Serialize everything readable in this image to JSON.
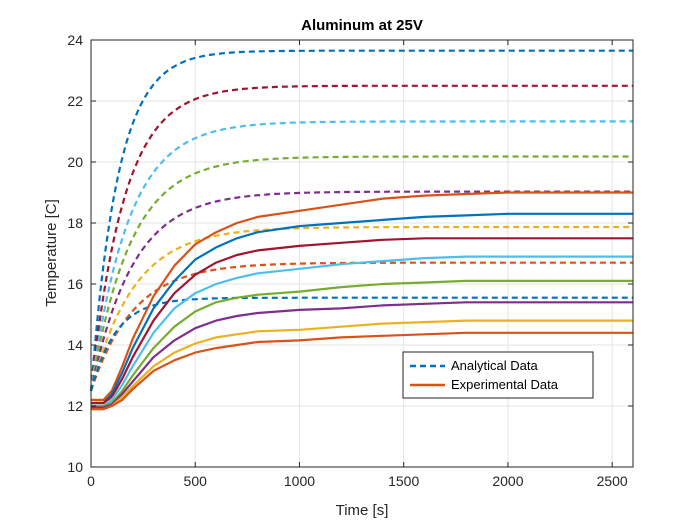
{
  "chart_data": {
    "type": "line",
    "title": "Aluminum at 25V",
    "xlabel": "Time [s]",
    "ylabel": "Temperature [C]",
    "xlim": [
      0,
      2600
    ],
    "ylim": [
      10,
      24
    ],
    "xticks": [
      0,
      500,
      1000,
      1500,
      2000,
      2500
    ],
    "yticks": [
      10,
      12,
      14,
      16,
      18,
      20,
      22,
      24
    ],
    "grid": true,
    "legend": {
      "position": "lower-right",
      "entries": [
        {
          "label": "Analytical Data",
          "style": "dashed",
          "color": "#0072BD"
        },
        {
          "label": "Experimental Data",
          "style": "solid",
          "color": "#D95319"
        }
      ]
    },
    "colors": [
      "#0072BD",
      "#A2142F",
      "#4DBEEE",
      "#77AC30",
      "#7E2F8E",
      "#D95319",
      "#EDB120"
    ],
    "analytical_series": [
      {
        "color": "#0072BD",
        "start": 12.5,
        "final": 23.65,
        "tau": 130
      },
      {
        "color": "#A2142F",
        "start": 12.5,
        "final": 22.5,
        "tau": 160
      },
      {
        "color": "#4DBEEE",
        "start": 12.5,
        "final": 21.33,
        "tau": 180
      },
      {
        "color": "#77AC30",
        "start": 12.5,
        "final": 20.18,
        "tau": 190
      },
      {
        "color": "#7E2F8E",
        "start": 12.5,
        "final": 19.03,
        "tau": 200
      },
      {
        "color": "#EDB120",
        "start": 12.5,
        "final": 17.87,
        "tau": 205
      },
      {
        "color": "#D95319",
        "start": 12.5,
        "final": 16.7,
        "tau": 205
      },
      {
        "color": "#0072BD",
        "start": 12.5,
        "final": 15.55,
        "tau": 120
      }
    ],
    "experimental_series": [
      {
        "color": "#D95319",
        "x": [
          0,
          60,
          100,
          150,
          200,
          300,
          400,
          500,
          600,
          700,
          800,
          1000,
          1200,
          1400,
          1600,
          1800,
          2000,
          2600
        ],
        "y": [
          12.2,
          12.2,
          12.5,
          13.3,
          14.2,
          15.6,
          16.6,
          17.3,
          17.7,
          18.0,
          18.2,
          18.4,
          18.6,
          18.8,
          18.9,
          18.95,
          19.0,
          19.0
        ]
      },
      {
        "color": "#0072BD",
        "x": [
          0,
          60,
          100,
          150,
          200,
          300,
          400,
          500,
          600,
          700,
          800,
          1000,
          1200,
          1400,
          1600,
          1800,
          2000,
          2600
        ],
        "y": [
          12.1,
          12.1,
          12.4,
          13.1,
          13.9,
          15.2,
          16.1,
          16.8,
          17.2,
          17.5,
          17.7,
          17.9,
          18.0,
          18.1,
          18.2,
          18.25,
          18.3,
          18.3
        ]
      },
      {
        "color": "#A2142F",
        "x": [
          0,
          60,
          100,
          150,
          200,
          300,
          400,
          500,
          600,
          700,
          800,
          1000,
          1200,
          1400,
          1600,
          1800,
          2000,
          2600
        ],
        "y": [
          12.1,
          12.1,
          12.3,
          12.9,
          13.6,
          14.8,
          15.7,
          16.3,
          16.7,
          16.95,
          17.1,
          17.25,
          17.35,
          17.45,
          17.5,
          17.5,
          17.5,
          17.5
        ]
      },
      {
        "color": "#4DBEEE",
        "x": [
          0,
          60,
          100,
          150,
          200,
          300,
          400,
          500,
          600,
          700,
          800,
          1000,
          1200,
          1400,
          1600,
          1800,
          2000,
          2600
        ],
        "y": [
          12.0,
          12.0,
          12.2,
          12.7,
          13.3,
          14.4,
          15.2,
          15.7,
          16.0,
          16.2,
          16.35,
          16.5,
          16.65,
          16.75,
          16.85,
          16.9,
          16.9,
          16.9
        ]
      },
      {
        "color": "#77AC30",
        "x": [
          0,
          60,
          100,
          150,
          200,
          300,
          400,
          500,
          600,
          700,
          800,
          1000,
          1200,
          1400,
          1600,
          1800,
          2000,
          2600
        ],
        "y": [
          12.0,
          12.0,
          12.1,
          12.5,
          13.0,
          13.9,
          14.6,
          15.1,
          15.4,
          15.55,
          15.65,
          15.75,
          15.9,
          16.0,
          16.05,
          16.1,
          16.1,
          16.1
        ]
      },
      {
        "color": "#7E2F8E",
        "x": [
          0,
          60,
          100,
          150,
          200,
          300,
          400,
          500,
          600,
          700,
          800,
          1000,
          1200,
          1400,
          1600,
          1800,
          2000,
          2600
        ],
        "y": [
          11.95,
          11.95,
          12.05,
          12.4,
          12.8,
          13.6,
          14.15,
          14.55,
          14.8,
          14.95,
          15.05,
          15.15,
          15.2,
          15.3,
          15.35,
          15.4,
          15.4,
          15.4
        ]
      },
      {
        "color": "#EDB120",
        "x": [
          0,
          60,
          100,
          150,
          200,
          300,
          400,
          500,
          600,
          700,
          800,
          1000,
          1200,
          1400,
          1600,
          1800,
          2000,
          2600
        ],
        "y": [
          11.9,
          11.9,
          12.0,
          12.3,
          12.65,
          13.3,
          13.75,
          14.05,
          14.25,
          14.35,
          14.45,
          14.5,
          14.6,
          14.7,
          14.75,
          14.8,
          14.8,
          14.8
        ]
      },
      {
        "color": "#D95319",
        "x": [
          0,
          60,
          100,
          150,
          200,
          300,
          400,
          500,
          600,
          700,
          800,
          1000,
          1200,
          1400,
          1600,
          1800,
          2000,
          2600
        ],
        "y": [
          11.9,
          11.9,
          12.0,
          12.2,
          12.55,
          13.15,
          13.5,
          13.75,
          13.9,
          14.0,
          14.1,
          14.15,
          14.25,
          14.3,
          14.35,
          14.4,
          14.4,
          14.4
        ]
      }
    ]
  }
}
